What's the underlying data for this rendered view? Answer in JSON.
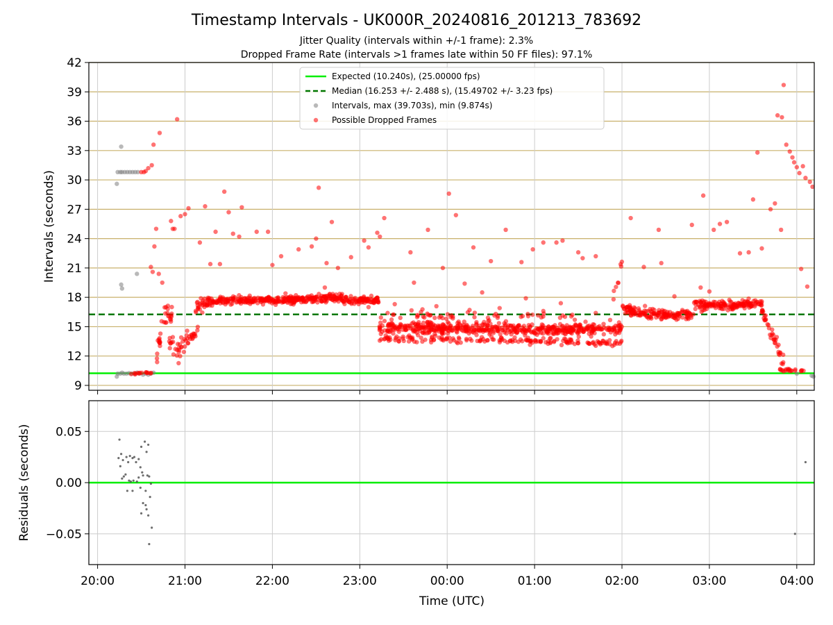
{
  "title": "Timestamp Intervals - UK000R_20240816_201213_783692",
  "subtitle_1": "Jitter Quality (intervals within +/-1 frame): 2.3%",
  "subtitle_2": "Dropped Frame Rate (intervals >1 frames late within 50 FF files): 97.1%",
  "colors": {
    "expected": "#00ee00",
    "median": "#007700",
    "intervals": "#808080",
    "dropped": "#ff0000",
    "hgrid": "#c8b06a",
    "grid": "#cccccc"
  },
  "chart_data": [
    {
      "type": "scatter",
      "panel": "top",
      "ylabel": "Intervals (seconds)",
      "xlabel": "",
      "xlim_hours": [
        -0.1,
        8.2
      ],
      "ylim": [
        8.5,
        42
      ],
      "yticks": [
        9,
        12,
        15,
        18,
        21,
        24,
        27,
        30,
        33,
        36,
        39,
        42
      ],
      "ytick_labels": [
        "9",
        "12",
        "15",
        "18",
        "21",
        "24",
        "27",
        "30",
        "33",
        "36",
        "39",
        "42"
      ],
      "xticks_hours": [
        0,
        1,
        2,
        3,
        4,
        5,
        6,
        7,
        8
      ],
      "grid": "horizontal",
      "legend_position": "top-center",
      "legend": [
        "Expected (10.240s), (25.00000 fps)",
        "Median (16.253 +/- 2.488 s), (15.49702 +/- 3.23 fps)",
        "Intervals, max (39.703s), min (9.874s)",
        "Possible Dropped Frames"
      ],
      "expected_line": 10.24,
      "median_line": 16.253,
      "note_x": "x values are hours after 20:00 UTC",
      "series": [
        {
          "name": "Intervals, max (39.703s), min (9.874s)",
          "points": [
            [
              0.22,
              29.6
            ],
            [
              0.23,
              30.8
            ],
            [
              0.26,
              30.8
            ],
            [
              0.27,
              33.4
            ],
            [
              0.28,
              30.8
            ],
            [
              0.31,
              30.8
            ],
            [
              0.34,
              30.8
            ],
            [
              0.37,
              30.8
            ],
            [
              0.4,
              30.8
            ],
            [
              0.43,
              30.8
            ],
            [
              0.46,
              30.8
            ],
            [
              0.27,
              19.3
            ],
            [
              0.28,
              18.9
            ],
            [
              0.45,
              20.4
            ],
            [
              0.22,
              9.9
            ],
            [
              0.23,
              10.2
            ],
            [
              0.26,
              10.2
            ],
            [
              0.28,
              10.3
            ],
            [
              0.3,
              10.2
            ],
            [
              0.33,
              10.2
            ],
            [
              0.36,
              10.25
            ],
            [
              0.39,
              10.2
            ],
            [
              0.42,
              10.2
            ],
            [
              0.45,
              10.3
            ],
            [
              0.48,
              10.2
            ],
            [
              0.52,
              10.1
            ],
            [
              0.55,
              10.2
            ],
            [
              0.58,
              10.1
            ],
            [
              0.61,
              10.2
            ],
            [
              0.64,
              10.3
            ],
            [
              8.0,
              10.2
            ],
            [
              8.17,
              10.0
            ],
            [
              8.19,
              9.9
            ]
          ]
        },
        {
          "name": "Possible Dropped Frames",
          "points": [
            [
              0.5,
              30.8
            ],
            [
              0.53,
              30.8
            ],
            [
              0.55,
              30.9
            ],
            [
              0.58,
              31.2
            ],
            [
              0.62,
              31.5
            ],
            [
              0.64,
              33.6
            ],
            [
              0.71,
              34.8
            ],
            [
              0.91,
              36.2
            ],
            [
              0.61,
              21.1
            ],
            [
              0.63,
              20.6
            ],
            [
              0.65,
              23.2
            ],
            [
              0.67,
              25.0
            ],
            [
              0.7,
              20.4
            ],
            [
              0.74,
              19.5
            ],
            [
              0.84,
              25.8
            ],
            [
              0.86,
              25.0
            ],
            [
              0.88,
              25.0
            ],
            [
              0.95,
              26.3
            ],
            [
              1.0,
              26.5
            ],
            [
              1.04,
              27.1
            ],
            [
              1.17,
              23.6
            ],
            [
              1.23,
              27.3
            ],
            [
              1.29,
              21.4
            ],
            [
              1.35,
              24.7
            ],
            [
              1.4,
              21.4
            ],
            [
              1.45,
              28.8
            ],
            [
              1.5,
              26.7
            ],
            [
              1.55,
              24.5
            ],
            [
              1.62,
              24.2
            ],
            [
              1.65,
              27.2
            ],
            [
              1.82,
              24.7
            ],
            [
              1.95,
              24.7
            ],
            [
              2.0,
              21.3
            ],
            [
              2.1,
              22.2
            ],
            [
              2.3,
              22.9
            ],
            [
              2.45,
              23.2
            ],
            [
              2.5,
              24.0
            ],
            [
              2.53,
              29.2
            ],
            [
              2.62,
              21.5
            ],
            [
              2.68,
              25.7
            ],
            [
              2.75,
              21.0
            ],
            [
              2.9,
              22.1
            ],
            [
              3.05,
              23.8
            ],
            [
              3.1,
              23.1
            ],
            [
              3.2,
              24.6
            ],
            [
              3.23,
              24.2
            ],
            [
              3.28,
              26.1
            ],
            [
              3.58,
              22.6
            ],
            [
              3.62,
              19.5
            ],
            [
              3.78,
              24.9
            ],
            [
              3.95,
              21.0
            ],
            [
              4.02,
              28.6
            ],
            [
              4.1,
              26.4
            ],
            [
              4.3,
              23.1
            ],
            [
              4.5,
              21.7
            ],
            [
              4.67,
              24.9
            ],
            [
              4.85,
              21.6
            ],
            [
              4.98,
              22.9
            ],
            [
              5.1,
              23.6
            ],
            [
              5.25,
              23.6
            ],
            [
              5.32,
              23.8
            ],
            [
              5.5,
              22.6
            ],
            [
              5.55,
              22.0
            ],
            [
              5.7,
              22.2
            ],
            [
              6.1,
              26.1
            ],
            [
              6.25,
              21.1
            ],
            [
              6.42,
              24.9
            ],
            [
              6.45,
              21.5
            ],
            [
              6.8,
              25.4
            ],
            [
              6.93,
              28.4
            ],
            [
              7.05,
              24.9
            ],
            [
              7.12,
              25.5
            ],
            [
              7.2,
              25.7
            ],
            [
              7.35,
              22.5
            ],
            [
              7.45,
              22.6
            ],
            [
              7.5,
              28.0
            ],
            [
              7.55,
              32.8
            ],
            [
              7.6,
              23.0
            ],
            [
              7.7,
              27.0
            ],
            [
              7.75,
              27.6
            ],
            [
              7.82,
              24.9
            ],
            [
              7.78,
              36.6
            ],
            [
              7.83,
              36.4
            ],
            [
              7.85,
              39.7
            ],
            [
              7.88,
              33.6
            ],
            [
              7.92,
              32.9
            ],
            [
              7.95,
              32.3
            ],
            [
              7.97,
              31.8
            ],
            [
              8.0,
              31.3
            ],
            [
              8.03,
              30.7
            ],
            [
              8.07,
              31.4
            ],
            [
              8.1,
              30.2
            ],
            [
              8.15,
              29.8
            ],
            [
              8.18,
              29.3
            ],
            [
              8.05,
              20.9
            ],
            [
              8.12,
              19.1
            ],
            [
              2.15,
              18.4
            ],
            [
              2.6,
              19.0
            ],
            [
              3.1,
              17.0
            ],
            [
              3.4,
              17.3
            ],
            [
              3.7,
              16.5
            ],
            [
              4.2,
              19.4
            ],
            [
              4.4,
              18.5
            ],
            [
              4.6,
              16.9
            ],
            [
              4.9,
              17.9
            ],
            [
              5.1,
              16.6
            ],
            [
              5.3,
              17.4
            ],
            [
              5.7,
              16.4
            ],
            [
              6.6,
              18.1
            ],
            [
              6.9,
              19.0
            ],
            [
              7.0,
              18.6
            ]
          ]
        }
      ],
      "dropped_bands": [
        {
          "x": [
            0.35,
            0.66
          ],
          "y": [
            10.15,
            10.35
          ],
          "noise": 0.1,
          "n": 14
        },
        {
          "x": [
            0.66,
            0.75
          ],
          "y": [
            10.5,
            15.8
          ],
          "noise": 1.2,
          "n": 14
        },
        {
          "x": [
            0.75,
            0.85
          ],
          "y": [
            16.2,
            16.3
          ],
          "noise": 1.0,
          "n": 18
        },
        {
          "x": [
            0.82,
            0.96
          ],
          "y": [
            13.0,
            12.5
          ],
          "noise": 1.2,
          "n": 20
        },
        {
          "x": [
            0.93,
            1.15
          ],
          "y": [
            12.8,
            14.9
          ],
          "noise": 0.8,
          "n": 26
        },
        {
          "x": [
            1.12,
            1.25
          ],
          "y": [
            16.8,
            17.6
          ],
          "noise": 0.8,
          "n": 22
        },
        {
          "x": [
            1.25,
            2.3
          ],
          "y": [
            17.6,
            17.8
          ],
          "noise": 0.4,
          "n": 230
        },
        {
          "x": [
            2.3,
            2.8
          ],
          "y": [
            17.8,
            18.0
          ],
          "noise": 0.4,
          "n": 110
        },
        {
          "x": [
            2.8,
            3.22
          ],
          "y": [
            17.6,
            17.7
          ],
          "noise": 0.4,
          "n": 90
        },
        {
          "x": [
            3.22,
            5.5
          ],
          "y": [
            14.9,
            14.7
          ],
          "noise": 0.55,
          "n": 420
        },
        {
          "x": [
            3.22,
            5.5
          ],
          "y": [
            13.8,
            13.5
          ],
          "noise": 0.4,
          "n": 140
        },
        {
          "x": [
            3.22,
            5.5
          ],
          "y": [
            16.0,
            15.7
          ],
          "noise": 0.8,
          "n": 70
        },
        {
          "x": [
            5.5,
            6.0
          ],
          "y": [
            14.7,
            14.9
          ],
          "noise": 0.6,
          "n": 90
        },
        {
          "x": [
            5.6,
            6.0
          ],
          "y": [
            13.3,
            13.3
          ],
          "noise": 0.3,
          "n": 30
        },
        {
          "x": [
            5.9,
            6.0
          ],
          "y": [
            17.9,
            21.5
          ],
          "noise": 1.0,
          "n": 8
        },
        {
          "x": [
            6.0,
            6.4
          ],
          "y": [
            16.9,
            16.3
          ],
          "noise": 0.5,
          "n": 80
        },
        {
          "x": [
            6.4,
            6.82
          ],
          "y": [
            16.2,
            16.2
          ],
          "noise": 0.5,
          "n": 80
        },
        {
          "x": [
            6.82,
            7.3
          ],
          "y": [
            17.2,
            17.1
          ],
          "noise": 0.5,
          "n": 100
        },
        {
          "x": [
            7.3,
            7.6
          ],
          "y": [
            17.2,
            17.4
          ],
          "noise": 0.4,
          "n": 60
        },
        {
          "x": [
            7.6,
            7.85
          ],
          "y": [
            16.5,
            11.5
          ],
          "noise": 0.6,
          "n": 40
        },
        {
          "x": [
            7.8,
            8.1
          ],
          "y": [
            10.6,
            10.5
          ],
          "noise": 0.15,
          "n": 20
        }
      ]
    },
    {
      "type": "scatter",
      "panel": "bottom",
      "ylabel": "Residuals (seconds)",
      "xlabel": "Time (UTC)",
      "xlim_hours": [
        -0.1,
        8.2
      ],
      "ylim": [
        -0.08,
        0.08
      ],
      "yticks": [
        -0.05,
        0.0,
        0.05
      ],
      "ytick_labels": [
        "−0.05",
        "0.00",
        "0.05"
      ],
      "xticks_hours": [
        0,
        1,
        2,
        3,
        4,
        5,
        6,
        7,
        8
      ],
      "xtick_labels": [
        "20:00",
        "21:00",
        "22:00",
        "23:00",
        "00:00",
        "01:00",
        "02:00",
        "03:00",
        "04:00"
      ],
      "grid": "both",
      "zero_line": 0.0,
      "series": [
        {
          "name": "",
          "points": [
            [
              0.25,
              0.042
            ],
            [
              0.27,
              0.028
            ],
            [
              0.29,
              0.022
            ],
            [
              0.26,
              0.016
            ],
            [
              0.24,
              0.024
            ],
            [
              0.33,
              0.025
            ],
            [
              0.35,
              0.02
            ],
            [
              0.37,
              0.026
            ],
            [
              0.4,
              0.024
            ],
            [
              0.42,
              0.025
            ],
            [
              0.44,
              0.02
            ],
            [
              0.47,
              0.023
            ],
            [
              0.5,
              0.035
            ],
            [
              0.54,
              0.04
            ],
            [
              0.56,
              0.03
            ],
            [
              0.58,
              0.037
            ],
            [
              0.49,
              0.015
            ],
            [
              0.51,
              0.01
            ],
            [
              0.28,
              0.004
            ],
            [
              0.3,
              0.006
            ],
            [
              0.32,
              0.008
            ],
            [
              0.36,
              0.002
            ],
            [
              0.38,
              0.001
            ],
            [
              0.41,
              0.002
            ],
            [
              0.45,
              0.001
            ],
            [
              0.47,
              0.005
            ],
            [
              0.52,
              0.007
            ],
            [
              0.57,
              0.007
            ],
            [
              0.59,
              0.006
            ],
            [
              0.34,
              -0.008
            ],
            [
              0.4,
              -0.008
            ],
            [
              0.49,
              -0.005
            ],
            [
              0.55,
              -0.008
            ],
            [
              0.6,
              -0.014
            ],
            [
              0.52,
              -0.02
            ],
            [
              0.55,
              -0.022
            ],
            [
              0.56,
              -0.026
            ],
            [
              0.5,
              -0.03
            ],
            [
              0.58,
              -0.032
            ],
            [
              0.62,
              -0.044
            ],
            [
              0.59,
              -0.06
            ],
            [
              0.61,
              -0.001
            ],
            [
              7.98,
              -0.05
            ],
            [
              8.1,
              0.02
            ],
            [
              8.24,
              -0.075
            ]
          ]
        }
      ]
    }
  ]
}
